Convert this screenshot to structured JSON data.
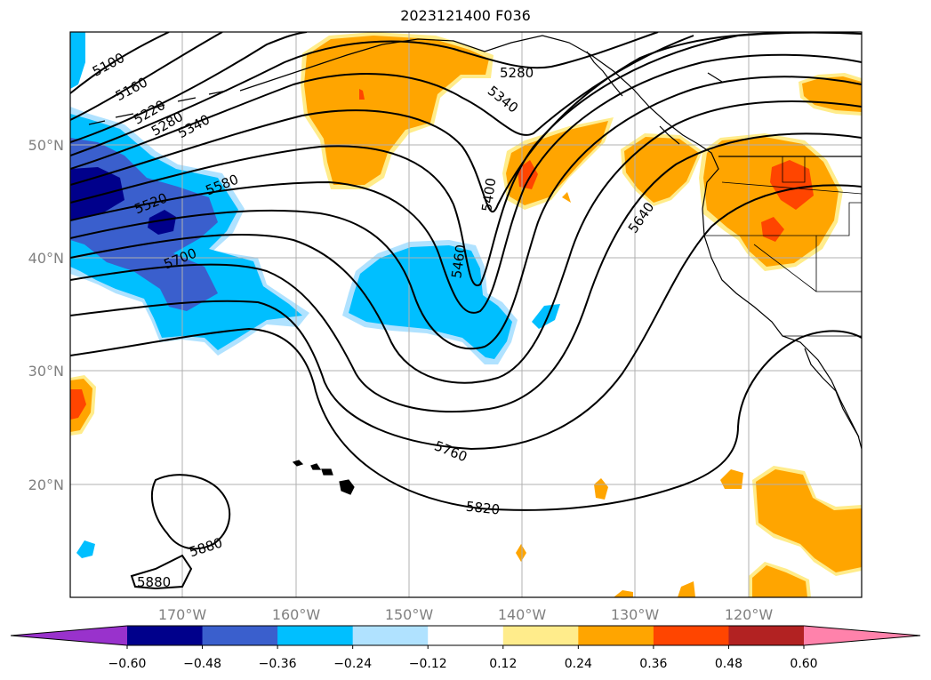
{
  "title": "2023121400 F036",
  "map": {
    "lat_ticks": [
      "50°N",
      "40°N",
      "30°N",
      "20°N"
    ],
    "lon_ticks": [
      "170°W",
      "160°W",
      "150°W",
      "140°W",
      "130°W",
      "120°W"
    ],
    "gridlines": true,
    "contour_color": "#000000",
    "contour_labels": [
      {
        "text": "5100"
      },
      {
        "text": "5160"
      },
      {
        "text": "5220"
      },
      {
        "text": "5280"
      },
      {
        "text": "5340"
      },
      {
        "text": "5520"
      },
      {
        "text": "5580"
      },
      {
        "text": "5700"
      },
      {
        "text": "5280"
      },
      {
        "text": "5340"
      },
      {
        "text": "5400"
      },
      {
        "text": "5460"
      },
      {
        "text": "5640"
      },
      {
        "text": "5760"
      },
      {
        "text": "5820"
      },
      {
        "text": "5880"
      },
      {
        "text": "5880"
      }
    ]
  },
  "colorbar": {
    "tick_labels": [
      "−0.60",
      "−0.48",
      "−0.36",
      "−0.24",
      "−0.12",
      "0.12",
      "0.24",
      "0.36",
      "0.48",
      "0.60"
    ],
    "colors": [
      "#9932cc",
      "#00008b",
      "#3a5fcd",
      "#00bfff",
      "#b0e2ff",
      "#ffffff",
      "#ffec8b",
      "#ffa500",
      "#ff4500",
      "#b22222",
      "#ff82ab"
    ]
  },
  "colors": {
    "neg_1": "#b0e2ff",
    "neg_2": "#00bfff",
    "neg_3": "#3a5fcd",
    "neg_4": "#00008b",
    "pos_1": "#ffec8b",
    "pos_2": "#ffa500",
    "pos_3": "#ff4500"
  }
}
